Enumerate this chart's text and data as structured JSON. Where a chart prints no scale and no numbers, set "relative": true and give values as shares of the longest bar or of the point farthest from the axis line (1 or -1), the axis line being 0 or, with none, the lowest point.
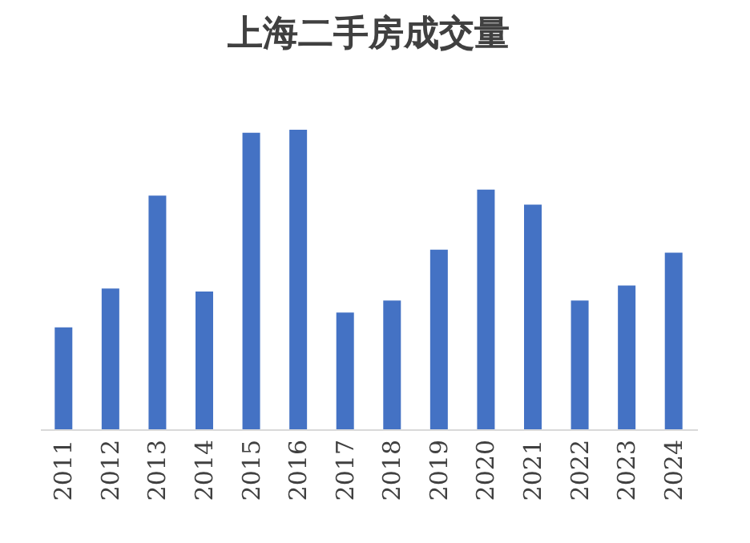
{
  "chart_data": {
    "type": "bar",
    "title": "上海二手房成交量",
    "relative": true,
    "categories": [
      "2011",
      "2012",
      "2013",
      "2014",
      "2015",
      "2016",
      "2017",
      "2018",
      "2019",
      "2020",
      "2021",
      "2022",
      "2023",
      "2024"
    ],
    "values": [
      0.34,
      0.47,
      0.78,
      0.46,
      0.99,
      1,
      0.39,
      0.43,
      0.6,
      0.8,
      0.75,
      0.43,
      0.48,
      0.59
    ],
    "color": "#4472c4"
  }
}
